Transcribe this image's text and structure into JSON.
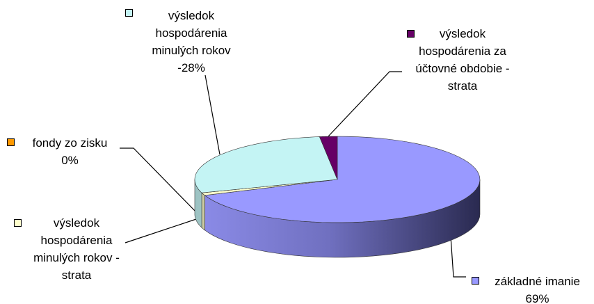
{
  "chart_data": {
    "type": "pie3d",
    "categories": [
      "základné imanie",
      "výsledok hospodárenia minulých rokov - strata",
      "fondy zo zisku",
      "výsledok hospodárenia minulých rokov",
      "výsledok hospodárenia za účtovné obdobie - strata"
    ],
    "values": [
      69,
      1,
      0,
      -28,
      2
    ],
    "value_labels": [
      "69%",
      null,
      "0%",
      "-28%",
      null
    ],
    "colors": [
      "#9999ff",
      "#ffffcc",
      "#ff9900",
      "#c4f4f4",
      "#660066"
    ]
  }
}
